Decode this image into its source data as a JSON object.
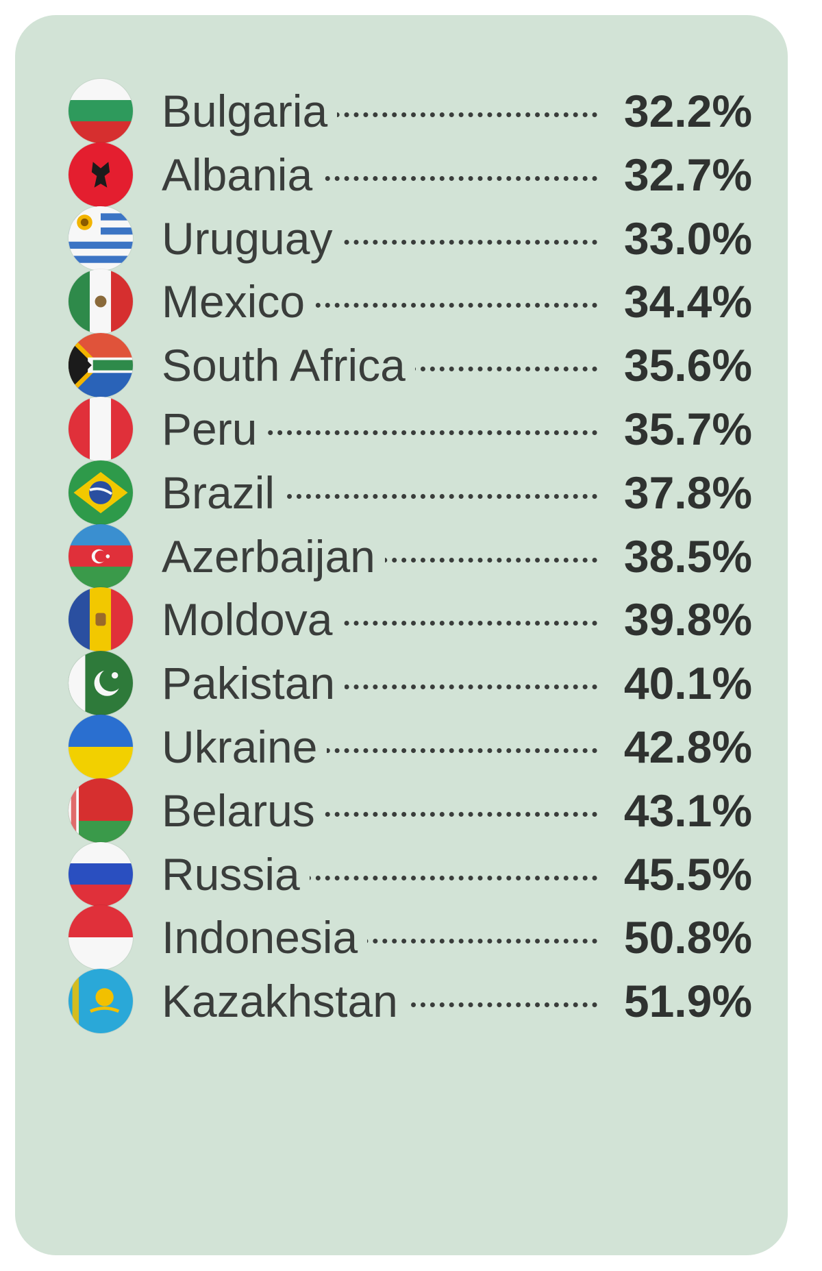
{
  "chart_data": {
    "type": "table",
    "categories": [
      "Bulgaria",
      "Albania",
      "Uruguay",
      "Mexico",
      "South Africa",
      "Peru",
      "Brazil",
      "Azerbaijan",
      "Moldova",
      "Pakistan",
      "Ukraine",
      "Belarus",
      "Russia",
      "Indonesia",
      "Kazakhstan"
    ],
    "values": [
      32.2,
      32.7,
      33.0,
      34.4,
      35.6,
      35.7,
      37.8,
      38.5,
      39.8,
      40.1,
      42.8,
      43.1,
      45.5,
      50.8,
      51.9
    ],
    "rows": [
      {
        "country": "Bulgaria",
        "value": "32.2%",
        "flag": "bulgaria-flag-icon"
      },
      {
        "country": "Albania",
        "value": "32.7%",
        "flag": "albania-flag-icon"
      },
      {
        "country": "Uruguay",
        "value": "33.0%",
        "flag": "uruguay-flag-icon"
      },
      {
        "country": "Mexico",
        "value": "34.4%",
        "flag": "mexico-flag-icon"
      },
      {
        "country": "South Africa",
        "value": "35.6%",
        "flag": "south-africa-flag-icon"
      },
      {
        "country": "Peru",
        "value": "35.7%",
        "flag": "peru-flag-icon"
      },
      {
        "country": "Brazil",
        "value": "37.8%",
        "flag": "brazil-flag-icon"
      },
      {
        "country": "Azerbaijan",
        "value": "38.5%",
        "flag": "azerbaijan-flag-icon"
      },
      {
        "country": "Moldova",
        "value": "39.8%",
        "flag": "moldova-flag-icon"
      },
      {
        "country": "Pakistan",
        "value": "40.1%",
        "flag": "pakistan-flag-icon"
      },
      {
        "country": "Ukraine",
        "value": "42.8%",
        "flag": "ukraine-flag-icon"
      },
      {
        "country": "Belarus",
        "value": "43.1%",
        "flag": "belarus-flag-icon"
      },
      {
        "country": "Russia",
        "value": "45.5%",
        "flag": "russia-flag-icon"
      },
      {
        "country": "Indonesia",
        "value": "50.8%",
        "flag": "indonesia-flag-icon"
      },
      {
        "country": "Kazakhstan",
        "value": "51.9%",
        "flag": "kazakhstan-flag-icon"
      }
    ]
  },
  "colors": {
    "card_background": "#d2e3d6",
    "text": "#3a3d3b",
    "value_text": "#2f3230"
  }
}
